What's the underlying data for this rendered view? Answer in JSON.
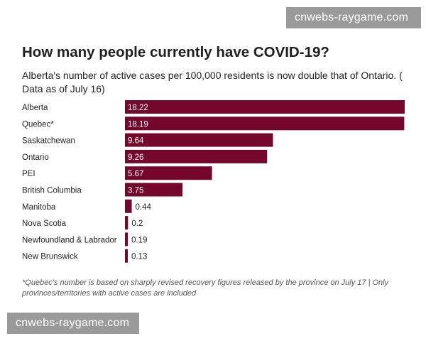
{
  "watermarks": [
    "cnwebs-raygame.com",
    "cnwebs-raygame.com"
  ],
  "colors": {
    "bar": "#74072b",
    "label_inside": "#ffffff",
    "label_outside": "#222222"
  },
  "chart_data": {
    "type": "bar",
    "orientation": "horizontal",
    "title": "How many people currently have COVID-19?",
    "subtitle": "Alberta's number of active cases per 100,000 residents is now double that of Ontario. ( Data as of July 16)",
    "categories": [
      "Alberta",
      "Quebec*",
      "Saskatchewan",
      "Ontario",
      "PEI",
      "British Columbia",
      "Manitoba",
      "Nova Scotia",
      "Newfoundland & Labrador",
      "New Brunswick"
    ],
    "values": [
      18.22,
      18.19,
      9.64,
      9.26,
      5.67,
      3.75,
      0.44,
      0.2,
      0.19,
      0.13
    ],
    "value_labels": [
      "18.22",
      "18.19",
      "9.64",
      "9.26",
      "5.67",
      "3.75",
      "0.44",
      "0.2",
      "0.19",
      "0.13"
    ],
    "xlim": [
      0,
      18.22
    ],
    "xlabel": "",
    "ylabel": "",
    "grid": false,
    "legend": "none"
  },
  "footnote": "*Quebec's number is based on sharply revised recovery figures released by the province on July 17 | Only provinces/territories with active cases are included"
}
